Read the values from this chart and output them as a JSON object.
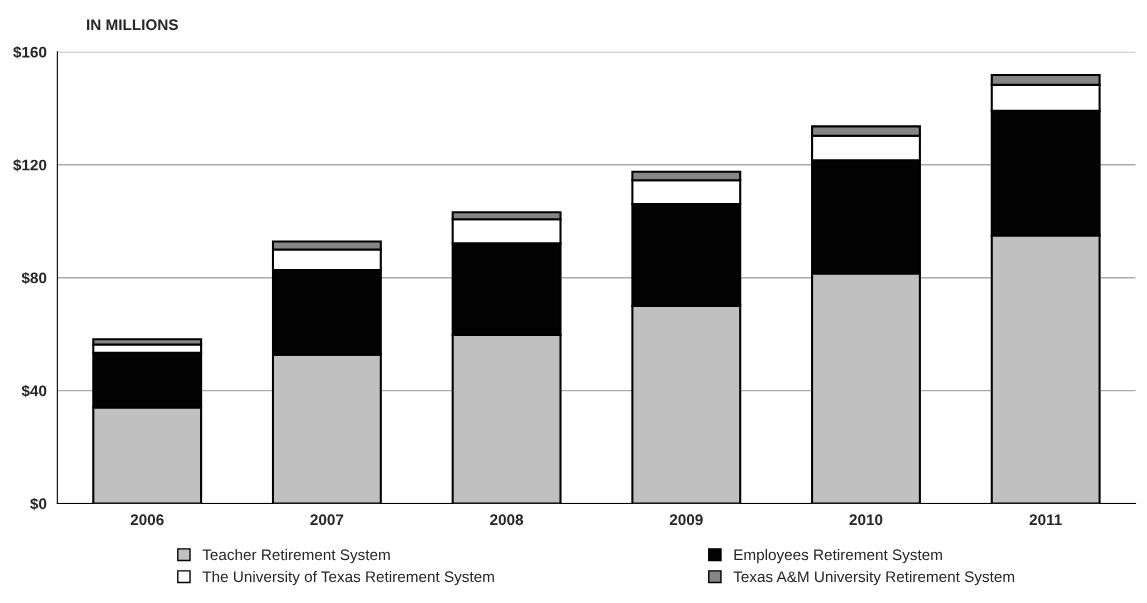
{
  "chart_data": {
    "type": "bar",
    "stacked": true,
    "ylabel": "IN MILLIONS",
    "categories": [
      "2006",
      "2007",
      "2008",
      "2009",
      "2010",
      "2011"
    ],
    "series": [
      {
        "name": "Teacher Retirement System",
        "color": "#c0c0c0",
        "values": [
          34.0,
          52.7,
          59.7,
          70.0,
          81.5,
          95.0
        ]
      },
      {
        "name": "Employees Retirement System",
        "color": "#030303",
        "values": [
          19.4,
          30.0,
          32.5,
          36.1,
          40.1,
          44.1
        ]
      },
      {
        "name": "The University of Texas Retirement System",
        "color": "#ffffff",
        "values": [
          2.9,
          7.3,
          8.5,
          8.4,
          8.7,
          9.2
        ]
      },
      {
        "name": "Texas A&M University Retirement System",
        "color": "#858585",
        "values": [
          1.9,
          2.8,
          2.5,
          3.0,
          3.3,
          3.5
        ]
      }
    ],
    "ylim": [
      0,
      160
    ],
    "yticks": [
      {
        "value": 0,
        "label": "$0"
      },
      {
        "value": 40,
        "label": "$40"
      },
      {
        "value": 80,
        "label": "$80"
      },
      {
        "value": 120,
        "label": "$120"
      },
      {
        "value": 160,
        "label": "$160"
      }
    ],
    "grid": "y",
    "legend": "bottom"
  }
}
